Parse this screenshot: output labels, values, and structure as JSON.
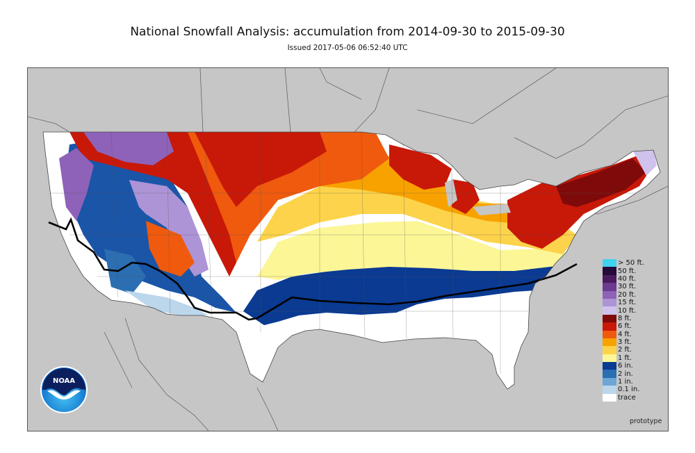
{
  "header": {
    "title": "National Snowfall Analysis: accumulation from 2014-09-30 to 2015-09-30",
    "issued": "Issued 2017-05-06 06:52:40 UTC"
  },
  "map": {
    "region": "Contiguous United States",
    "background_color": "#c6c6c6",
    "no_snow_color": "#ffffff"
  },
  "legend": {
    "items": [
      {
        "label": "> 50 ft.",
        "color": "#3fd3ef"
      },
      {
        "label": "50 ft.",
        "color": "#260a3a"
      },
      {
        "label": "40 ft.",
        "color": "#4a1a5e"
      },
      {
        "label": "30 ft.",
        "color": "#6c3a8f"
      },
      {
        "label": "20 ft.",
        "color": "#8e62b8"
      },
      {
        "label": "15 ft.",
        "color": "#ad94d6"
      },
      {
        "label": "10 ft.",
        "color": "#cfc2ec"
      },
      {
        "label": "8 ft.",
        "color": "#7f0a0a"
      },
      {
        "label": "6 ft.",
        "color": "#c81808"
      },
      {
        "label": "4 ft.",
        "color": "#ef5a0e"
      },
      {
        "label": "3 ft.",
        "color": "#f8a200"
      },
      {
        "label": "2 ft.",
        "color": "#fcd34a"
      },
      {
        "label": "1 ft.",
        "color": "#fcf696"
      },
      {
        "label": "6 in.",
        "color": "#0a3a92"
      },
      {
        "label": "2 in.",
        "color": "#2b6eb2"
      },
      {
        "label": "1 in.",
        "color": "#6ea6d6"
      },
      {
        "label": "0.1 in.",
        "color": "#bcd6ec"
      },
      {
        "label": "trace",
        "color": "#ffffff"
      }
    ]
  },
  "footer": {
    "note": "prototype"
  },
  "logo": {
    "text": "NOAA",
    "icon": "noaa-logo-icon"
  }
}
